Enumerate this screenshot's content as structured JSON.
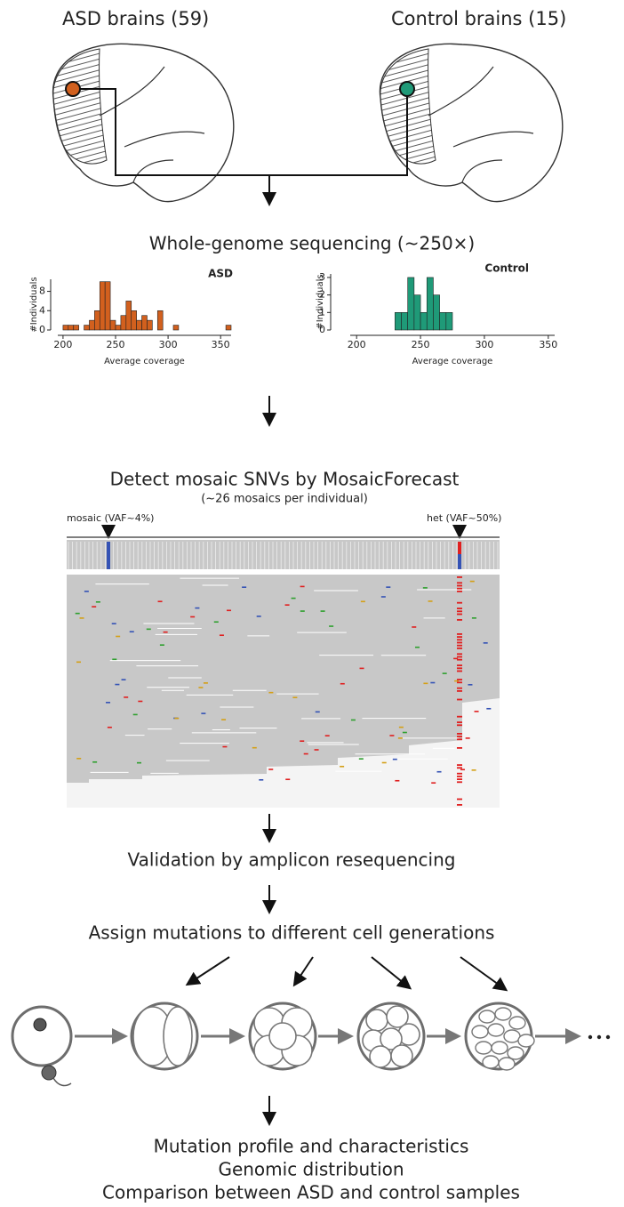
{
  "header": {
    "asd_brains": "ASD brains (59)",
    "control_brains": "Control brains (15)"
  },
  "steps": {
    "sequencing": "Whole-genome sequencing (~250×)",
    "detect": "Detect mosaic SNVs by MosaicForecast",
    "detect_note": "(~26 mosaics per individual)",
    "validation": "Validation by amplicon resequencing",
    "assign": "Assign mutations to different cell generations"
  },
  "igv": {
    "mosaic_label": "mosaic (VAF~4%)",
    "het_label": "het (VAF~50%)"
  },
  "chart_data": [
    {
      "type": "histogram",
      "title": "ASD",
      "x_label": "Average coverage",
      "y_label": "#Individuals",
      "color": "#d2601e",
      "bins": [
        200,
        205,
        210,
        215,
        220,
        225,
        230,
        235,
        240,
        245,
        250,
        255,
        260,
        265,
        270,
        275,
        280,
        285,
        290,
        295,
        300,
        305,
        310,
        315,
        320,
        325,
        330,
        335,
        340,
        345,
        350,
        355,
        360
      ],
      "values": [
        1,
        1,
        1,
        0,
        1,
        2,
        4,
        10,
        10,
        2,
        1,
        3,
        6,
        4,
        2,
        3,
        2,
        0,
        4,
        0,
        0,
        1,
        0,
        0,
        0,
        0,
        0,
        0,
        0,
        0,
        0,
        1
      ],
      "xlim": [
        195,
        360
      ],
      "ylim": [
        0,
        10.5
      ],
      "xticks": [
        200,
        250,
        300,
        350
      ],
      "yticks": [
        0,
        4,
        8
      ]
    },
    {
      "type": "histogram",
      "title": "Control",
      "x_label": "Average coverage",
      "y_label": "#Individuals",
      "color": "#1f9a78",
      "bins": [
        230,
        235,
        240,
        245,
        250,
        255,
        260,
        265,
        270,
        275
      ],
      "values": [
        1,
        1,
        3,
        2,
        1,
        3,
        2,
        1,
        1
      ],
      "xlim": [
        195,
        355
      ],
      "ylim": [
        0,
        3.2
      ],
      "xticks": [
        200,
        250,
        300,
        350
      ],
      "yticks": [
        0,
        1,
        2,
        3
      ]
    }
  ],
  "outcomes": [
    "Mutation profile and characteristics",
    "Genomic distribution",
    "Comparison between ASD and control samples"
  ]
}
